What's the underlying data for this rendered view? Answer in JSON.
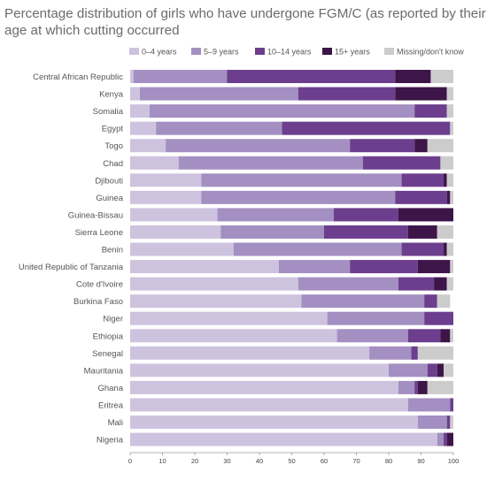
{
  "chart_data": {
    "type": "bar",
    "orientation": "horizontal",
    "stacked": true,
    "title_lines": [
      "Percentage distribution of girls who have undergone FGM/C (as reported by their mothers), by",
      "age at which cutting occurred"
    ],
    "xlim": [
      0,
      100
    ],
    "xticks": [
      "0",
      "10",
      "20",
      "30",
      "40",
      "50",
      "60",
      "70",
      "80",
      "90",
      "100"
    ],
    "grid": false,
    "legend_position": "top",
    "categories": [
      "Central African Republic",
      "Kenya",
      "Somalia",
      "Egypt",
      "Togo",
      "Chad",
      "Djibouti",
      "Guinea",
      "Guinea-Bissau",
      "Sierra Leone",
      "Benin",
      "United Republic of Tanzania",
      "Cote d'Ivoire",
      "Burkina Faso",
      "Niger",
      "Ethiopia",
      "Senegal",
      "Mauritania",
      "Ghana",
      "Eritrea",
      "Mali",
      "Nigeria"
    ],
    "series": [
      {
        "name": "0–4 years",
        "color": "#cdc3df",
        "values": [
          1,
          3,
          6,
          8,
          11,
          15,
          22,
          22,
          27,
          28,
          32,
          46,
          52,
          53,
          61,
          64,
          74,
          80,
          83,
          86,
          89,
          95
        ]
      },
      {
        "name": "5–9 years",
        "color": "#a38fc1",
        "values": [
          29,
          49,
          82,
          39,
          57,
          57,
          62,
          60,
          36,
          32,
          52,
          22,
          31,
          38,
          30,
          22,
          13,
          12,
          5,
          13,
          9,
          2
        ]
      },
      {
        "name": "10–14 years",
        "color": "#6c3e8d",
        "values": [
          52,
          30,
          10,
          52,
          20,
          24,
          13,
          16,
          20,
          26,
          13,
          21,
          11,
          4,
          9,
          10,
          2,
          3,
          1,
          1,
          1,
          1
        ]
      },
      {
        "name": "15+ years",
        "color": "#3d1548",
        "values": [
          11,
          16,
          0,
          0,
          4,
          0,
          1,
          1,
          17,
          9,
          1,
          10,
          4,
          0,
          0,
          3,
          0,
          2,
          3,
          0,
          0,
          2
        ]
      },
      {
        "name": "Missing/don't know",
        "color": "#cccccc",
        "values": [
          7,
          2,
          2,
          1,
          8,
          4,
          2,
          1,
          0,
          5,
          2,
          1,
          2,
          4,
          0,
          1,
          11,
          3,
          8,
          0,
          1,
          0
        ]
      }
    ]
  }
}
